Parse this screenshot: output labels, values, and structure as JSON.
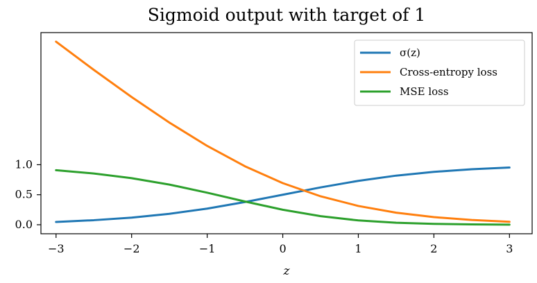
{
  "chart_data": {
    "type": "line",
    "title": "Sigmoid output with target of 1",
    "xlabel": "z",
    "ylabel": "",
    "xlim": [
      -3.2,
      3.3
    ],
    "ylim": [
      -0.15,
      3.2
    ],
    "x_ticks": [
      -3,
      -2,
      -1,
      0,
      1,
      2,
      3
    ],
    "x_tick_labels": [
      "−3",
      "−2",
      "−1",
      "0",
      "1",
      "2",
      "3"
    ],
    "y_ticks": [
      0.0,
      0.5,
      1.0
    ],
    "y_tick_labels": [
      "0.0",
      "0.5",
      "1.0"
    ],
    "grid": false,
    "legend_position": "top-right",
    "x": [
      -3.0,
      -2.5,
      -2.0,
      -1.5,
      -1.0,
      -0.5,
      0.0,
      0.5,
      1.0,
      1.5,
      2.0,
      2.5,
      3.0
    ],
    "series": [
      {
        "name": "σ(z)",
        "color": "#1f77b4",
        "values": [
          0.047,
          0.076,
          0.119,
          0.182,
          0.269,
          0.378,
          0.5,
          0.622,
          0.731,
          0.818,
          0.881,
          0.924,
          0.953
        ]
      },
      {
        "name": "Cross-entropy loss",
        "color": "#ff7f0e",
        "values": [
          3.049,
          2.579,
          2.127,
          1.701,
          1.313,
          0.974,
          0.693,
          0.474,
          0.313,
          0.201,
          0.127,
          0.079,
          0.049
        ]
      },
      {
        "name": "MSE loss",
        "color": "#2ca02c",
        "values": [
          0.908,
          0.854,
          0.776,
          0.669,
          0.534,
          0.387,
          0.25,
          0.143,
          0.072,
          0.033,
          0.014,
          0.006,
          0.002
        ]
      }
    ]
  }
}
